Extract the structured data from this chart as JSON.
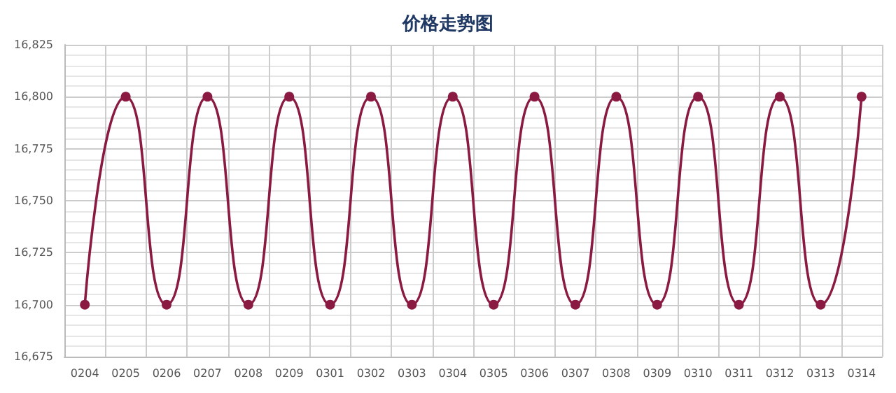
{
  "chart_data": {
    "type": "line",
    "title": "价格走势图",
    "categories": [
      "0204",
      "0205",
      "0206",
      "0207",
      "0208",
      "0209",
      "0301",
      "0302",
      "0303",
      "0304",
      "0305",
      "0306",
      "0307",
      "0308",
      "0309",
      "0310",
      "0311",
      "0312",
      "0313",
      "0314"
    ],
    "series": [
      {
        "color": "#8b1a42",
        "values": [
          16700,
          16800,
          16700,
          16800,
          16700,
          16800,
          16700,
          16800,
          16700,
          16800,
          16700,
          16800,
          16700,
          16800,
          16700,
          16800,
          16700,
          16800,
          16700,
          16800
        ]
      }
    ],
    "ylim": [
      16675,
      16825
    ],
    "yticks": [
      {
        "value": 16675,
        "label": "16,675"
      },
      {
        "value": 16700,
        "label": "16,700"
      },
      {
        "value": 16725,
        "label": "16,725"
      },
      {
        "value": 16750,
        "label": "16,750"
      },
      {
        "value": 16775,
        "label": "16,775"
      },
      {
        "value": 16800,
        "label": "16,800"
      },
      {
        "value": 16825,
        "label": "16,825"
      }
    ],
    "grid": true,
    "marker": "circle",
    "line_style": "solid"
  }
}
